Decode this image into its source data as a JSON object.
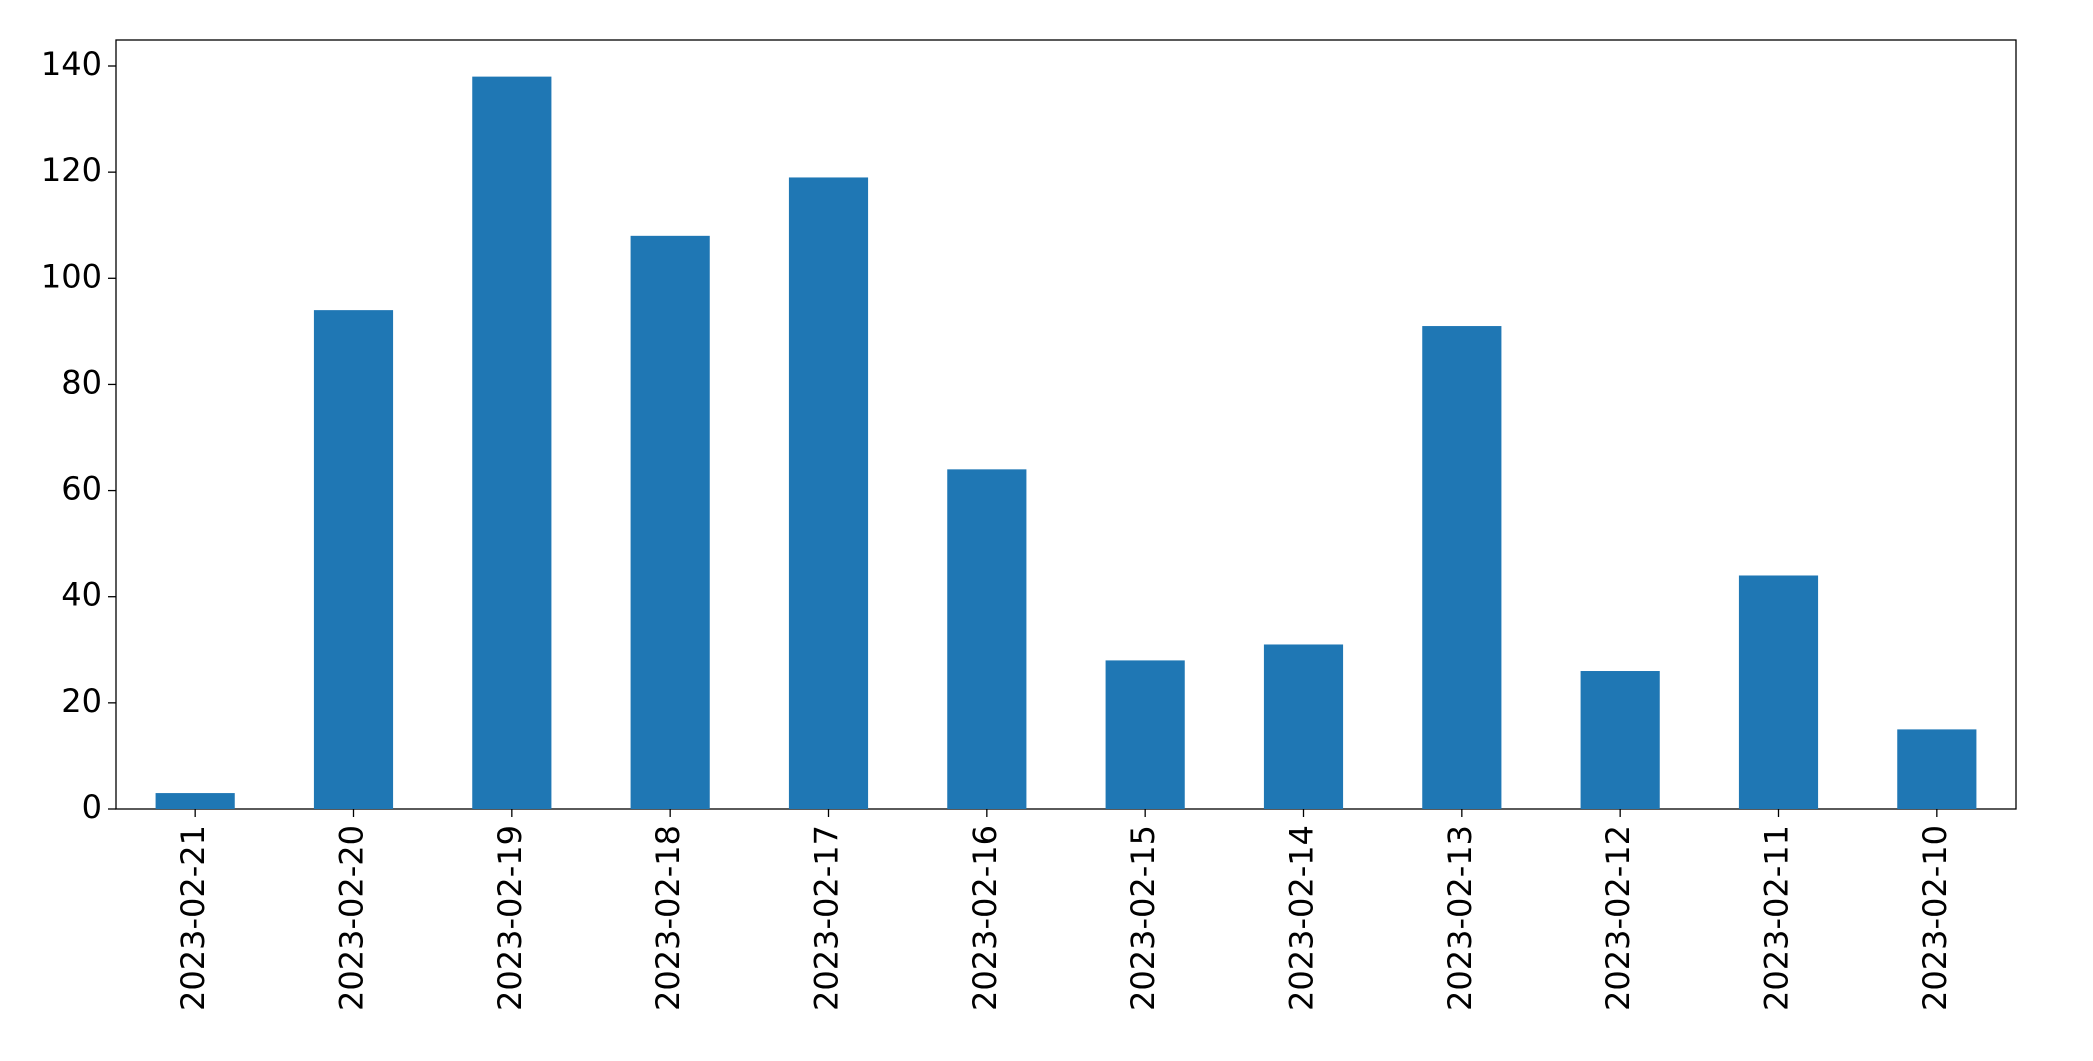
{
  "chart_data": {
    "type": "bar",
    "categories": [
      "2023-02-21",
      "2023-02-20",
      "2023-02-19",
      "2023-02-18",
      "2023-02-17",
      "2023-02-16",
      "2023-02-15",
      "2023-02-14",
      "2023-02-13",
      "2023-02-12",
      "2023-02-11",
      "2023-02-10"
    ],
    "values": [
      3,
      94,
      138,
      108,
      119,
      64,
      28,
      31,
      91,
      26,
      44,
      15
    ],
    "color": "#1f77b4",
    "ylim": [
      0,
      144.9
    ],
    "yticks": [
      0,
      20,
      40,
      60,
      80,
      100,
      120,
      140
    ],
    "grid": false
  }
}
